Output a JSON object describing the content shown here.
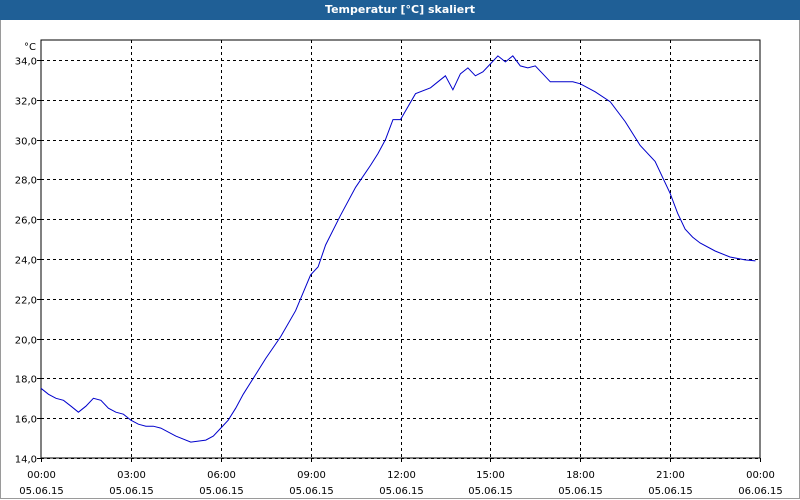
{
  "window": {
    "title": "Temperatur [°C] skaliert"
  },
  "colors": {
    "titlebar": "#1f5f96",
    "line": "#0000cc",
    "grid": "#000000"
  },
  "chart_data": {
    "type": "line",
    "title": "Temperatur [°C] skaliert",
    "ylabel": "°C",
    "xlabel": "",
    "ylim": [
      14.0,
      35.0
    ],
    "xlim": [
      0,
      24
    ],
    "grid": true,
    "yticks": [
      "14,0",
      "16,0",
      "18,0",
      "20,0",
      "22,0",
      "24,0",
      "26,0",
      "28,0",
      "30,0",
      "32,0",
      "34,0"
    ],
    "xticks": [
      {
        "time": "00:00",
        "date": "05.06.15"
      },
      {
        "time": "03:00",
        "date": "05.06.15"
      },
      {
        "time": "06:00",
        "date": "05.06.15"
      },
      {
        "time": "09:00",
        "date": "05.06.15"
      },
      {
        "time": "12:00",
        "date": "05.06.15"
      },
      {
        "time": "15:00",
        "date": "05.06.15"
      },
      {
        "time": "18:00",
        "date": "05.06.15"
      },
      {
        "time": "21:00",
        "date": "05.06.15"
      },
      {
        "time": "00:00",
        "date": "06.06.15"
      }
    ],
    "series": [
      {
        "x": [
          0.0,
          0.25,
          0.5,
          0.75,
          1.0,
          1.25,
          1.5,
          1.75,
          2.0,
          2.25,
          2.5,
          2.75,
          3.0,
          3.25,
          3.5,
          3.75,
          4.0,
          4.5,
          5.0,
          5.5,
          5.75,
          6.0,
          6.25,
          6.5,
          6.75,
          7.0,
          7.5,
          8.0,
          8.5,
          9.0,
          9.25,
          9.5,
          10.0,
          10.5,
          11.0,
          11.25,
          11.5,
          11.75,
          12.0,
          12.5,
          13.0,
          13.25,
          13.5,
          13.75,
          14.0,
          14.25,
          14.5,
          14.75,
          15.0,
          15.25,
          15.5,
          15.75,
          16.0,
          16.25,
          16.5,
          16.75,
          17.0,
          17.25,
          17.5,
          17.75,
          18.0,
          18.5,
          19.0,
          19.5,
          20.0,
          20.5,
          21.0,
          21.25,
          21.5,
          21.75,
          22.0,
          22.5,
          23.0,
          23.5,
          23.85
        ],
        "values": [
          17.5,
          17.2,
          17.0,
          16.9,
          16.6,
          16.3,
          16.6,
          17.0,
          16.9,
          16.5,
          16.3,
          16.2,
          15.9,
          15.7,
          15.6,
          15.6,
          15.5,
          15.1,
          14.8,
          14.9,
          15.1,
          15.5,
          15.9,
          16.5,
          17.2,
          17.8,
          19.0,
          20.1,
          21.4,
          23.2,
          23.6,
          24.7,
          26.2,
          27.6,
          28.7,
          29.3,
          30.0,
          31.0,
          31.0,
          32.3,
          32.6,
          32.9,
          33.2,
          32.5,
          33.3,
          33.6,
          33.2,
          33.4,
          33.8,
          34.2,
          33.9,
          34.2,
          33.7,
          33.6,
          33.7,
          33.3,
          32.9,
          32.9,
          32.9,
          32.9,
          32.8,
          32.4,
          31.9,
          30.9,
          29.7,
          28.9,
          27.3,
          26.3,
          25.5,
          25.1,
          24.8,
          24.4,
          24.1,
          23.95,
          23.9
        ]
      }
    ]
  }
}
